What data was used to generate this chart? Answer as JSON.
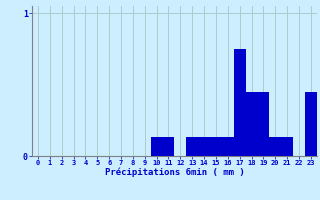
{
  "title": "",
  "xlabel": "Précipitations 6min ( mm )",
  "ylabel": "",
  "categories": [
    0,
    1,
    2,
    3,
    4,
    5,
    6,
    7,
    8,
    9,
    10,
    11,
    12,
    13,
    14,
    15,
    16,
    17,
    18,
    19,
    20,
    21,
    22,
    23
  ],
  "values": [
    0,
    0,
    0,
    0,
    0,
    0,
    0,
    0,
    0,
    0,
    0.13,
    0.13,
    0,
    0.13,
    0.13,
    0.13,
    0.13,
    0.75,
    0.45,
    0.45,
    0.13,
    0.13,
    0,
    0.45
  ],
  "bar_color": "#0000cc",
  "bg_color": "#cceeff",
  "grid_color": "#aacccc",
  "text_color": "#0000cc",
  "ylim": [
    0,
    1.05
  ],
  "yticks": [
    0,
    1
  ],
  "ytick_labels": [
    "0",
    "1"
  ],
  "figsize": [
    3.2,
    2.0
  ],
  "dpi": 100
}
